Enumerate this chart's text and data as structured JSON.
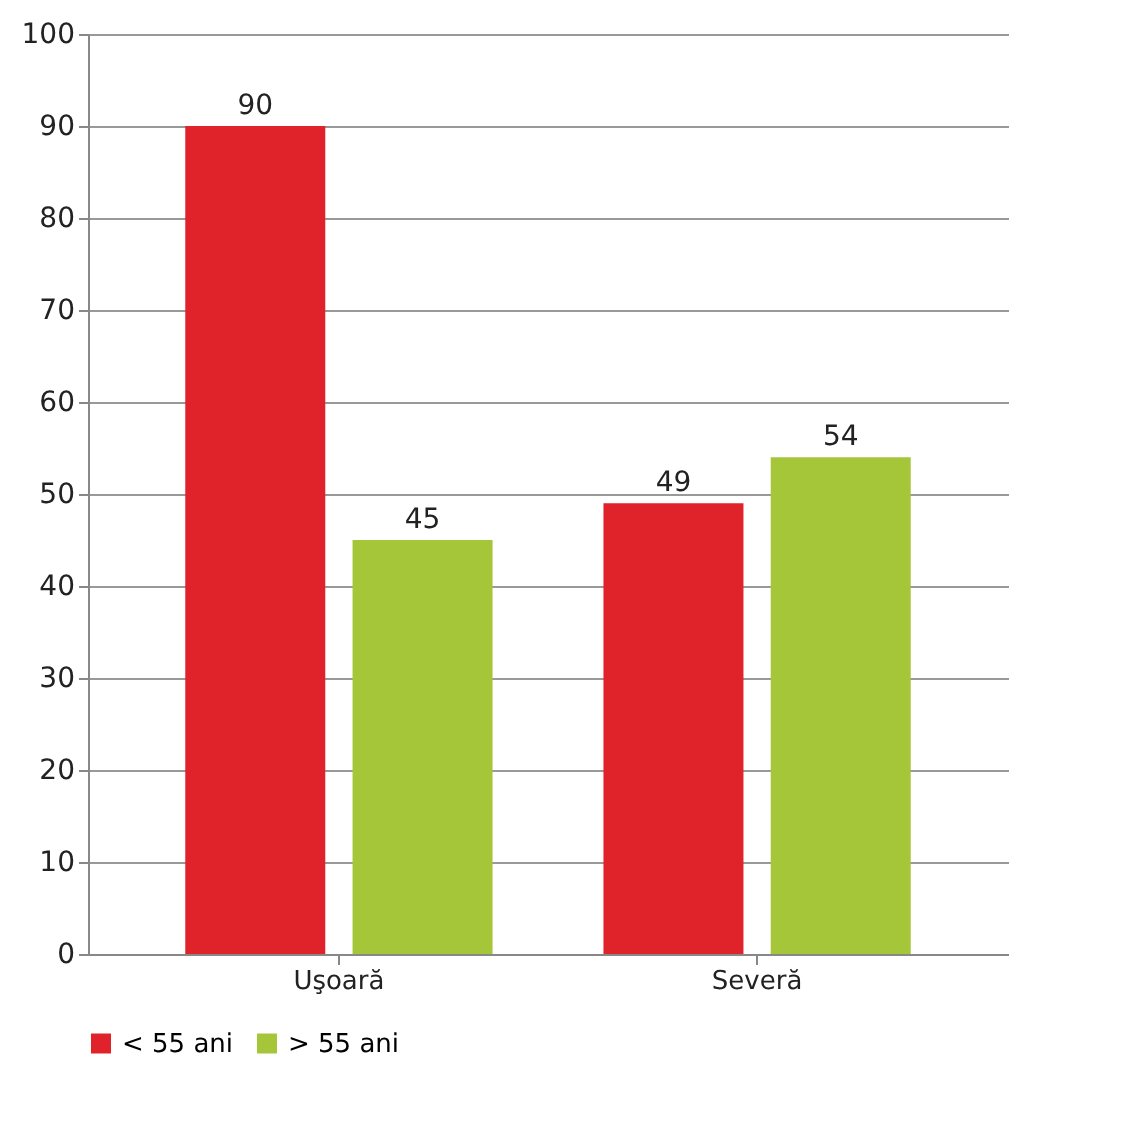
{
  "chart_data": {
    "type": "bar",
    "categories": [
      "Uşoară",
      "Severă"
    ],
    "series": [
      {
        "name": "< 55 ani",
        "color": "#e0222a",
        "values": [
          90,
          49
        ]
      },
      {
        "name": "> 55 ani",
        "color": "#a6c63a",
        "values": [
          45,
          54
        ]
      }
    ],
    "ylim": [
      0,
      100
    ],
    "yticks": [
      0,
      10,
      20,
      30,
      40,
      50,
      60,
      70,
      80,
      90,
      100
    ],
    "grid": "y",
    "legend": "bottom",
    "data_labels": true
  }
}
